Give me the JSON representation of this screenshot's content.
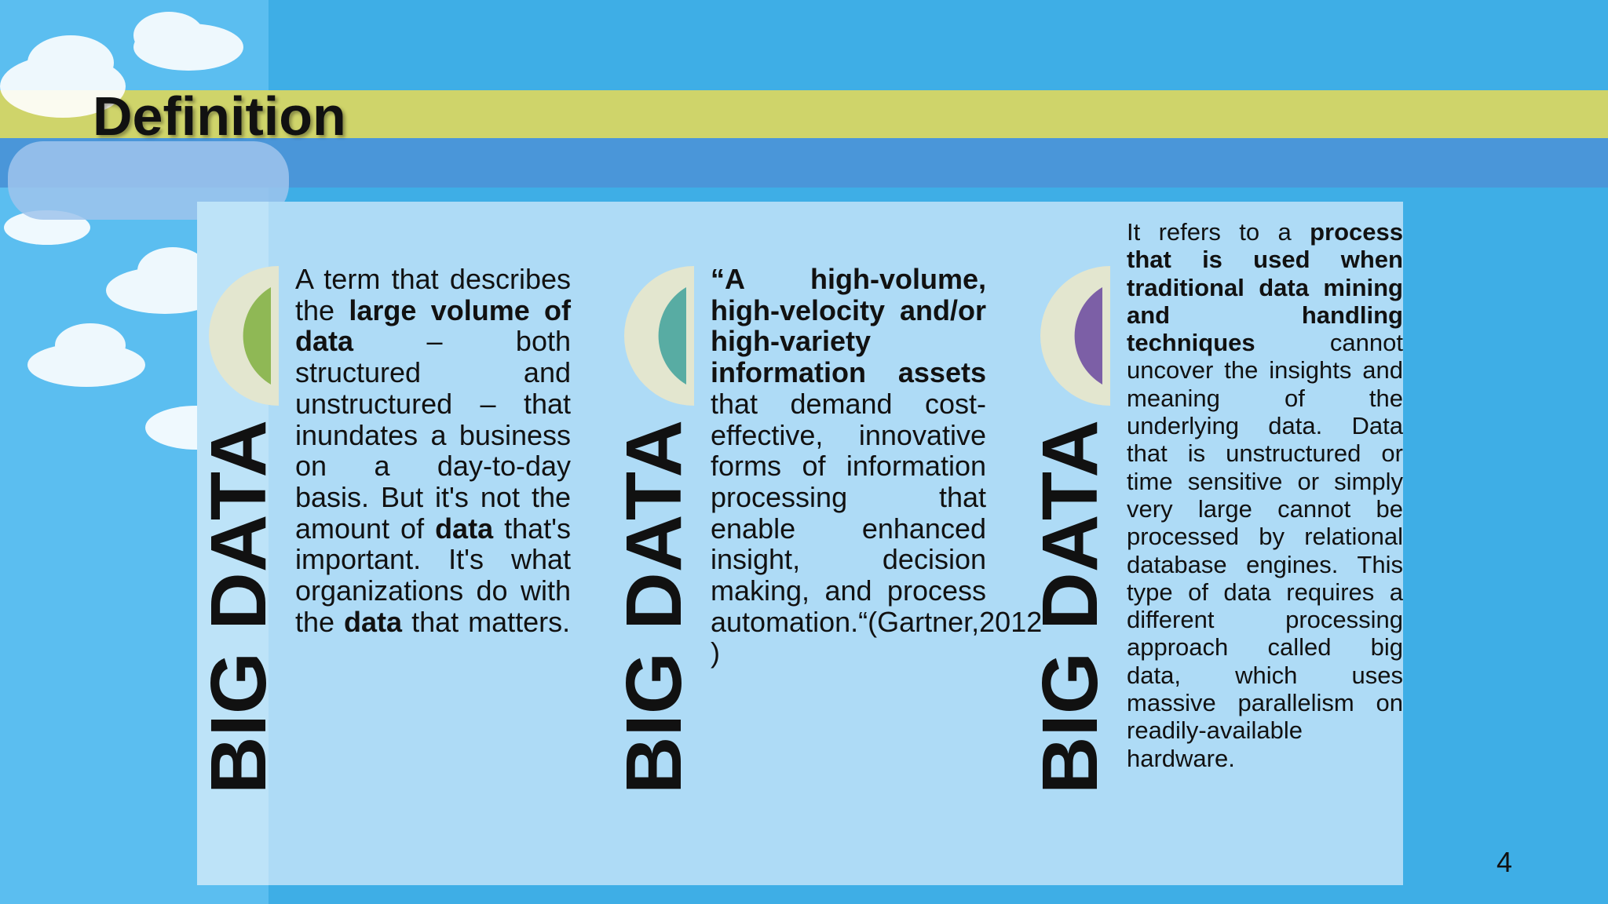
{
  "header": {
    "title": "Definition"
  },
  "columns": [
    {
      "label": "BIG DATA",
      "accent": "#8fb855",
      "segments": [
        {
          "text": "A term that describes the ",
          "bold": false
        },
        {
          "text": "large volume of data",
          "bold": true
        },
        {
          "text": " – both structured and unstructured – that inundates a business on a day-to-day basis. But it's not the amount of ",
          "bold": false
        },
        {
          "text": "data",
          "bold": true
        },
        {
          "text": " that's important. It's what organizations do with the ",
          "bold": false
        },
        {
          "text": "data",
          "bold": true
        },
        {
          "text": " that matters.",
          "bold": false
        }
      ]
    },
    {
      "label": "BIG DATA",
      "accent": "#58aca3",
      "segments": [
        {
          "text": "“A high-volume, high-velocity and/or high-variety information assets",
          "bold": true
        },
        {
          "text": " that demand cost-effective, innovative forms of information processing that enable enhanced insight, decision making, and process automation.“(Gartner,2012 )",
          "bold": false
        }
      ]
    },
    {
      "label": "BIG DATA",
      "accent": "#7c5fa6",
      "segments": [
        {
          "text": "It refers to a ",
          "bold": false
        },
        {
          "text": "process that is used when traditional data mining and handling techniques",
          "bold": true
        },
        {
          "text": " cannot uncover the insights and meaning of the underlying data. Data that is unstructured or time sensitive or simply very large cannot be processed by relational database engines. This type of data requires a different processing approach called big data, which uses massive parallelism on readily-available hardware.",
          "bold": false
        }
      ]
    }
  ],
  "footer": {
    "page_number": "4"
  }
}
